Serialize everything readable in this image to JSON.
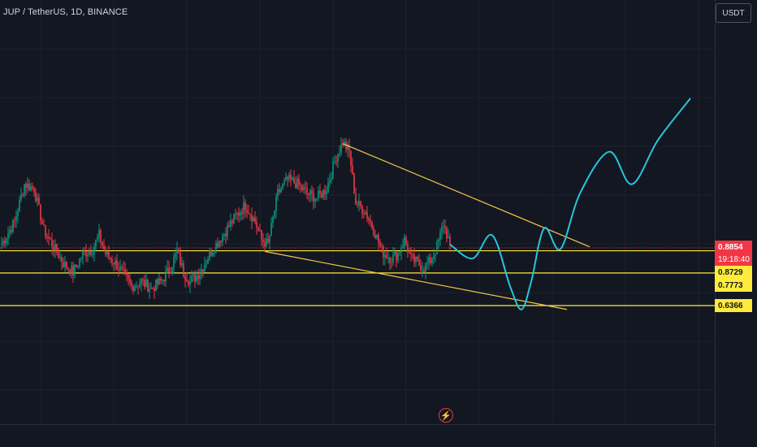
{
  "header": {
    "symbol_title": "JUP / TetherUS, 1D, BINANCE"
  },
  "currency_button": {
    "label": "USDT"
  },
  "price_scale": {
    "current_price": "0.8854",
    "countdown": "19:18:40",
    "levels": [
      "0.8729",
      "0.7773",
      "0.6366"
    ]
  },
  "icons": {
    "flash": "lightning-icon"
  },
  "colors": {
    "background": "#131722",
    "up_candle": "#089981",
    "down_candle": "#f23645",
    "level_line": "#ffeb3b",
    "trendline": "#f7c948",
    "projection": "#26c6da",
    "current_price": "#f23645"
  },
  "chart_data": {
    "type": "candlestick",
    "title": "JUP / TetherUS, 1D, BINANCE",
    "ylim": [
      0.55,
      1.55
    ],
    "current_price": 0.8854,
    "horizontal_levels": [
      0.8854,
      0.8729,
      0.7773,
      0.6366
    ],
    "anchors_close": [
      [
        0,
        0.9
      ],
      [
        8,
        1.0
      ],
      [
        14,
        1.16
      ],
      [
        20,
        1.14
      ],
      [
        26,
        0.96
      ],
      [
        32,
        0.89
      ],
      [
        38,
        0.82
      ],
      [
        44,
        0.78
      ],
      [
        50,
        0.86
      ],
      [
        56,
        0.88
      ],
      [
        60,
        0.94
      ],
      [
        64,
        0.86
      ],
      [
        70,
        0.82
      ],
      [
        74,
        0.78
      ],
      [
        80,
        0.72
      ],
      [
        86,
        0.74
      ],
      [
        92,
        0.71
      ],
      [
        98,
        0.74
      ],
      [
        104,
        0.8
      ],
      [
        108,
        0.87
      ],
      [
        112,
        0.78
      ],
      [
        116,
        0.74
      ],
      [
        122,
        0.78
      ],
      [
        128,
        0.86
      ],
      [
        132,
        0.9
      ],
      [
        138,
        0.96
      ],
      [
        144,
        1.02
      ],
      [
        150,
        1.07
      ],
      [
        156,
        1.0
      ],
      [
        160,
        0.92
      ],
      [
        164,
        0.9
      ],
      [
        170,
        1.12
      ],
      [
        176,
        1.18
      ],
      [
        182,
        1.16
      ],
      [
        188,
        1.12
      ],
      [
        194,
        1.1
      ],
      [
        200,
        1.14
      ],
      [
        206,
        1.28
      ],
      [
        210,
        1.34
      ],
      [
        214,
        1.3
      ],
      [
        218,
        1.08
      ],
      [
        224,
        1.04
      ],
      [
        230,
        0.95
      ],
      [
        234,
        0.87
      ],
      [
        240,
        0.84
      ],
      [
        244,
        0.86
      ],
      [
        248,
        0.92
      ],
      [
        252,
        0.84
      ],
      [
        256,
        0.82
      ],
      [
        260,
        0.8
      ],
      [
        264,
        0.83
      ],
      [
        268,
        0.89
      ],
      [
        272,
        0.99
      ],
      [
        276,
        0.9
      ]
    ],
    "projection_path": [
      [
        276,
        0.9
      ],
      [
        290,
        0.84
      ],
      [
        302,
        0.94
      ],
      [
        313,
        0.72
      ],
      [
        320,
        0.62
      ],
      [
        326,
        0.74
      ],
      [
        334,
        0.97
      ],
      [
        344,
        0.88
      ],
      [
        356,
        1.12
      ],
      [
        374,
        1.3
      ],
      [
        388,
        1.16
      ],
      [
        404,
        1.35
      ],
      [
        424,
        1.53
      ]
    ],
    "trendlines": [
      {
        "from": [
          210,
          1.335
        ],
        "to": [
          362,
          0.89
        ]
      },
      {
        "from": [
          162,
          0.87
        ],
        "to": [
          348,
          0.62
        ]
      }
    ]
  }
}
